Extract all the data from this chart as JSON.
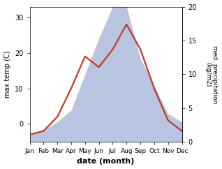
{
  "months": [
    "Jan",
    "Feb",
    "Mar",
    "Apr",
    "May",
    "Jun",
    "Jul",
    "Aug",
    "Sep",
    "Oct",
    "Nov",
    "Dec"
  ],
  "temp": [
    -3,
    -2,
    2,
    10,
    19,
    16,
    21,
    28,
    21,
    10,
    1,
    -2
  ],
  "precip": [
    2,
    3,
    5,
    8,
    17,
    26,
    34,
    34,
    21,
    14,
    7,
    5
  ],
  "temp_ylim": [
    -5,
    33
  ],
  "precip_ylim": [
    0,
    34
  ],
  "precip_scale_max": 20,
  "temp_yticks": [
    0,
    10,
    20,
    30
  ],
  "precip_yticks": [
    0,
    5,
    10,
    15,
    20
  ],
  "precip_ytick_labels": [
    "0",
    "5",
    "10",
    "15",
    "20"
  ],
  "temp_color": "#c0392b",
  "precip_fill_color": "#b8c4e0",
  "xlabel": "date (month)",
  "ylabel_left": "max temp (C)",
  "ylabel_right": "med. precipitation\n(kg/m2)",
  "linewidth": 1.6,
  "fill_alpha": 1.0
}
